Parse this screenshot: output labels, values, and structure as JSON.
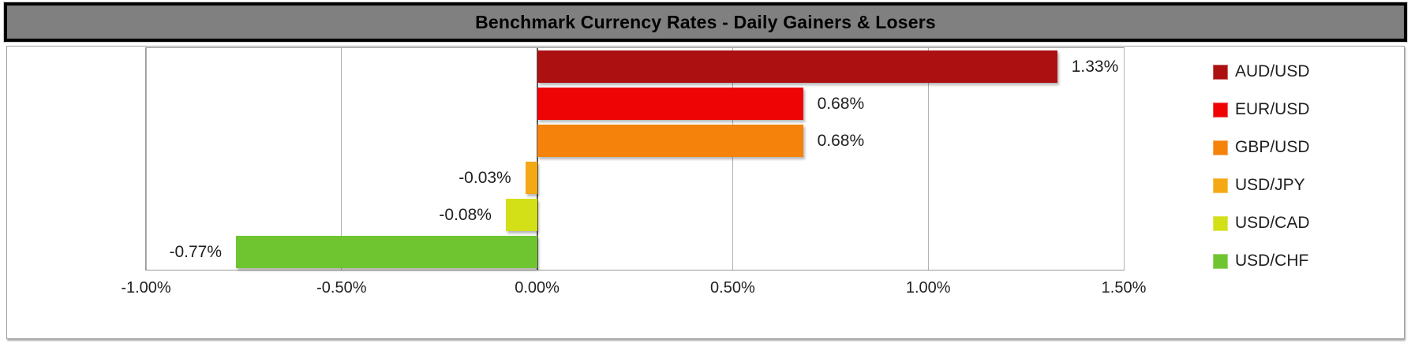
{
  "title_bar": {
    "bg_color": "#808080",
    "border_color": "#000000",
    "text_color": "#000000"
  },
  "chart_data": {
    "type": "bar",
    "orientation": "horizontal",
    "title": "Benchmark Currency Rates - Daily Gainers & Losers",
    "categories": [
      "AUD/USD",
      "EUR/USD",
      "GBP/USD",
      "USD/JPY",
      "USD/CAD",
      "USD/CHF"
    ],
    "values": [
      1.33,
      0.68,
      0.68,
      -0.03,
      -0.08,
      -0.77
    ],
    "labels": [
      "1.33%",
      "0.68%",
      "0.68%",
      "-0.03%",
      "-0.08%",
      "-0.77%"
    ],
    "bar_colors": [
      "#AC1011",
      "#EE0404",
      "#F5820A",
      "#F4A814",
      "#D3DF17",
      "#6FC52F"
    ],
    "xlabel": "",
    "ylabel": "",
    "x_ticks": [
      "-1.00%",
      "-0.50%",
      "0.00%",
      "0.50%",
      "1.00%",
      "1.50%"
    ],
    "x_tick_values": [
      -1.0,
      -0.5,
      0.0,
      0.5,
      1.0,
      1.5
    ],
    "xlim": [
      -1.0,
      1.5
    ],
    "grid": true,
    "legend_position": "right",
    "legend": [
      "AUD/USD",
      "EUR/USD",
      "GBP/USD",
      "USD/JPY",
      "USD/CAD",
      "USD/CHF"
    ]
  }
}
